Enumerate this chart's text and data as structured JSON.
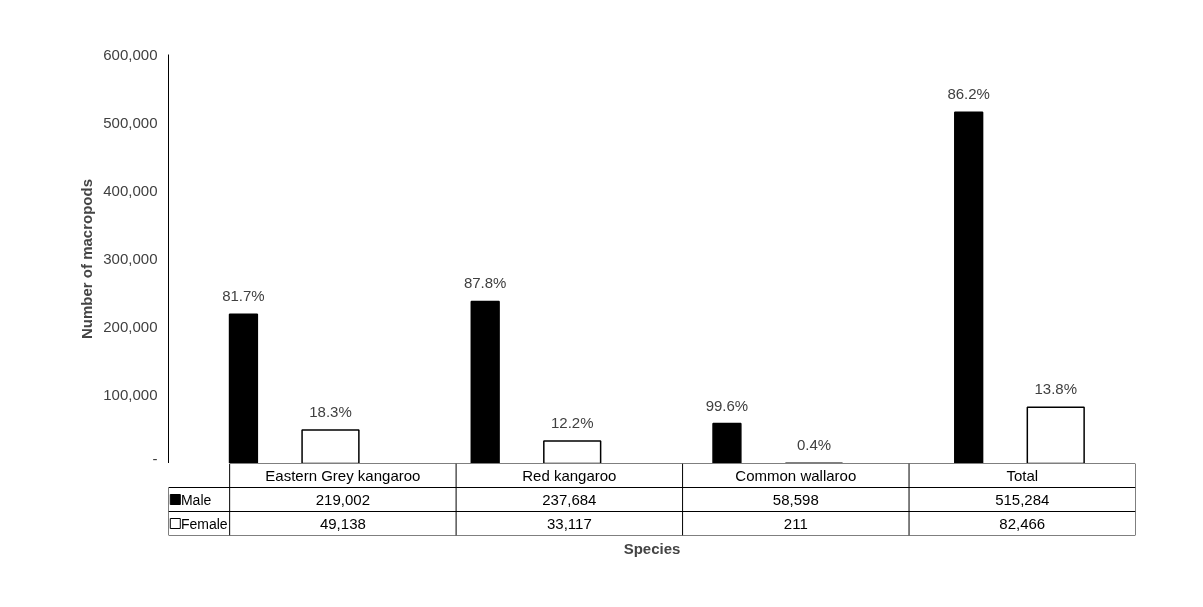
{
  "chart_data": {
    "type": "bar",
    "ylabel": "Number of macropods",
    "xlabel": "Species",
    "categories": [
      "Eastern Grey kangaroo",
      "Red kangaroo",
      "Common wallaroo",
      "Total"
    ],
    "series": [
      {
        "name": "Male",
        "color": "#000000",
        "values": [
          219002,
          237684,
          58598,
          515284
        ],
        "value_labels": [
          "219,002",
          "237,684",
          "58,598",
          "515,284"
        ]
      },
      {
        "name": "Female",
        "color": "#ffffff",
        "values": [
          49138,
          33117,
          211,
          82466
        ],
        "value_labels": [
          "49,138",
          "33,117",
          "211",
          "82,466"
        ]
      }
    ],
    "annotations": [
      "81.7%",
      "87.8%",
      "99.6%",
      "86.2%",
      "18.3%",
      "12.2%",
      "0.4%",
      "13.8%"
    ],
    "ylim": [
      0,
      600000
    ],
    "yticks": [
      {
        "value": 0,
        "label": "-"
      },
      {
        "value": 100000,
        "label": "100,000"
      },
      {
        "value": 200000,
        "label": "200,000"
      },
      {
        "value": 300000,
        "label": "300,000"
      },
      {
        "value": 400000,
        "label": "400,000"
      },
      {
        "value": 500000,
        "label": "500,000"
      },
      {
        "value": 600000,
        "label": "600,000"
      }
    ],
    "grid": false,
    "legend": "bottom"
  }
}
